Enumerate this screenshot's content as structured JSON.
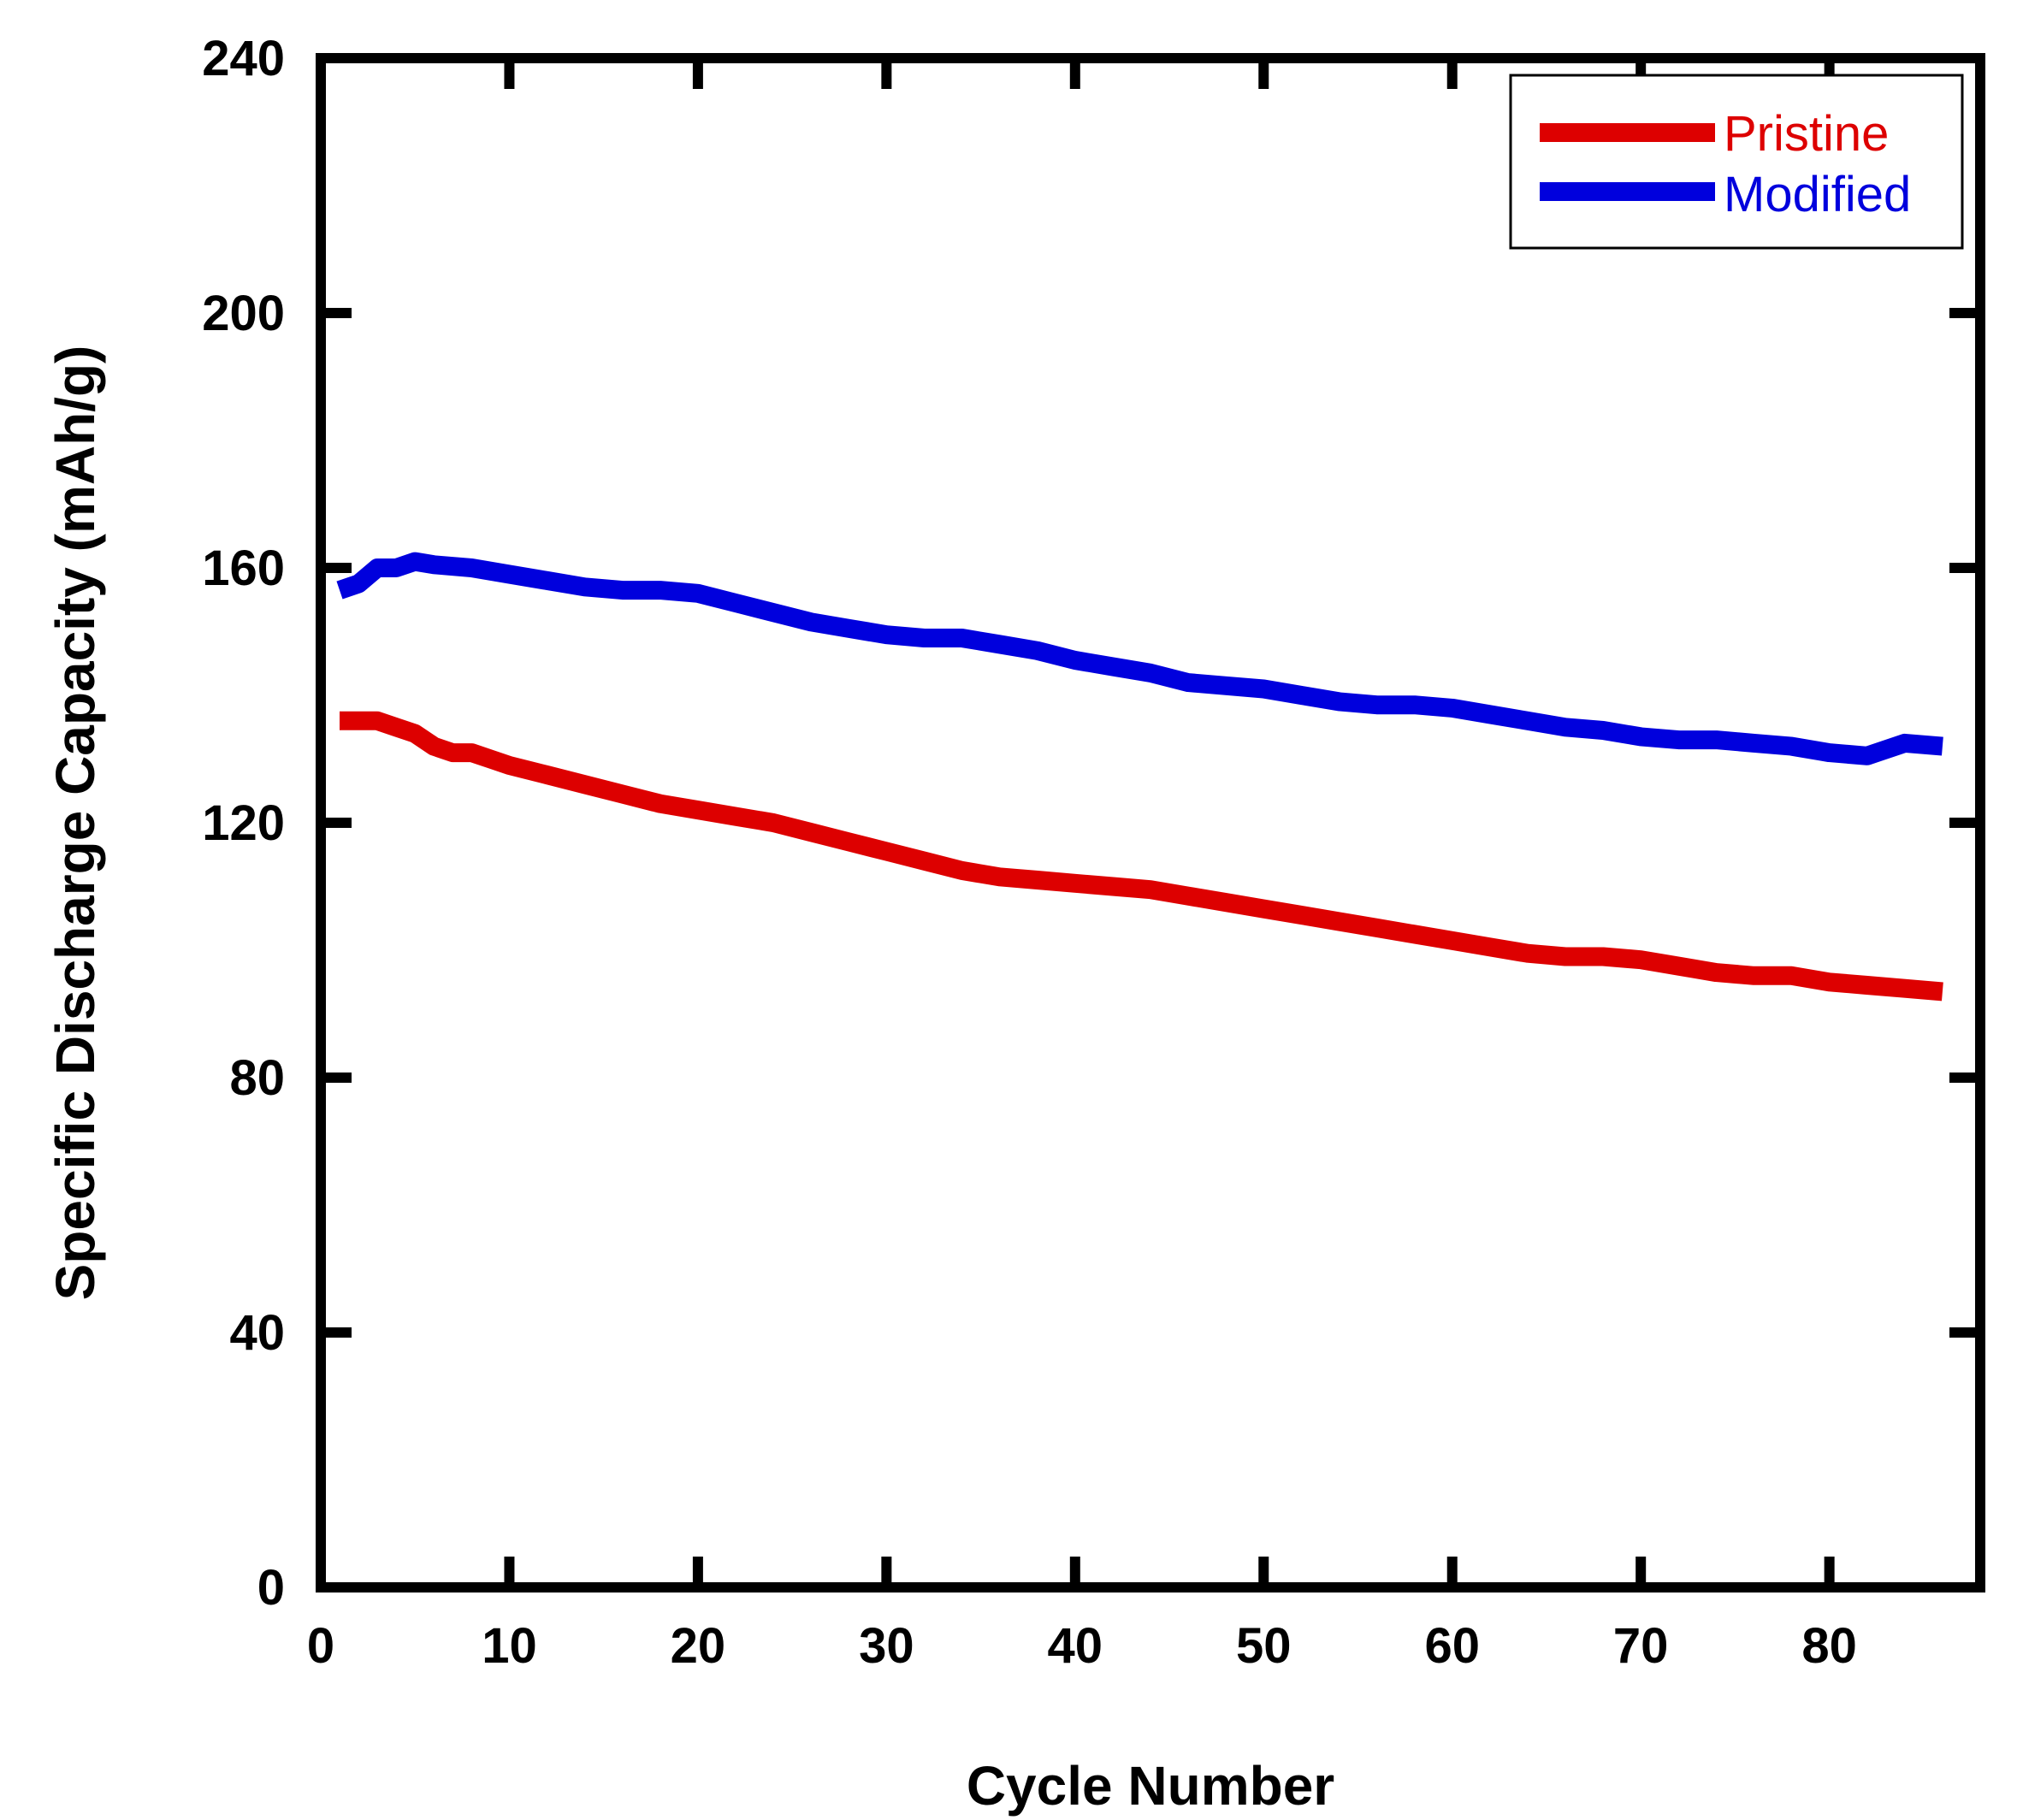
{
  "chart_data": {
    "type": "line",
    "title": "",
    "xlabel": "Cycle Number",
    "ylabel": "Specific Discharge Capacity (mAh/g)",
    "xlim": [
      0,
      88
    ],
    "ylim": [
      0,
      240
    ],
    "xticks": [
      0,
      10,
      20,
      30,
      40,
      50,
      60,
      70,
      80
    ],
    "yticks": [
      0,
      40,
      80,
      120,
      160,
      200,
      240
    ],
    "grid": false,
    "legend_position": "top-right",
    "series": [
      {
        "name": "Pristine",
        "color": "#dd0000",
        "x": [
          1,
          2,
          3,
          4,
          5,
          6,
          7,
          8,
          9,
          10,
          12,
          14,
          16,
          18,
          20,
          22,
          24,
          26,
          28,
          30,
          32,
          34,
          36,
          38,
          40,
          42,
          44,
          46,
          48,
          50,
          52,
          54,
          56,
          58,
          60,
          62,
          64,
          66,
          68,
          70,
          72,
          74,
          76,
          78,
          80,
          82,
          84,
          86
        ],
        "y": [
          136,
          136,
          136,
          135,
          134,
          132,
          131,
          131,
          130,
          129,
          127.5,
          126,
          124.5,
          123,
          122,
          121,
          120,
          118.5,
          117,
          115.5,
          114,
          112.5,
          111.5,
          111,
          110.5,
          110,
          109.5,
          108.5,
          107.5,
          106.5,
          105.5,
          104.5,
          103.5,
          102.5,
          101.5,
          100.5,
          99.5,
          99,
          99,
          98.5,
          97.5,
          96.5,
          96,
          96,
          95,
          94.5,
          94,
          93.5
        ]
      },
      {
        "name": "Modified",
        "color": "#0000dd",
        "x": [
          1,
          2,
          3,
          4,
          5,
          6,
          8,
          10,
          12,
          14,
          16,
          18,
          20,
          22,
          24,
          26,
          28,
          30,
          32,
          34,
          36,
          38,
          40,
          42,
          44,
          46,
          48,
          50,
          52,
          54,
          56,
          58,
          60,
          62,
          64,
          66,
          68,
          70,
          72,
          74,
          76,
          78,
          80,
          82,
          84,
          86
        ],
        "y": [
          156.5,
          157.5,
          160,
          160,
          161,
          160.5,
          160,
          159,
          158,
          157,
          156.5,
          156.5,
          156,
          154.5,
          153,
          151.5,
          150.5,
          149.5,
          149,
          149,
          148,
          147,
          145.5,
          144.5,
          143.5,
          142,
          141.5,
          141,
          140,
          139,
          138.5,
          138.5,
          138,
          137,
          136,
          135,
          134.5,
          133.5,
          133,
          133,
          132.5,
          132,
          131,
          130.5,
          132.5,
          132
        ]
      }
    ]
  }
}
